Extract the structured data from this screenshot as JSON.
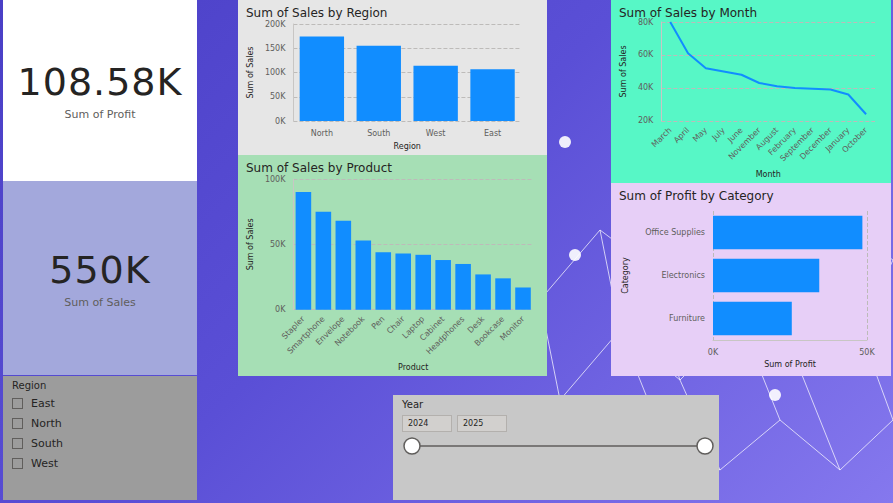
{
  "cards": [
    {
      "value": "108.58K",
      "label": "Sum of Profit"
    },
    {
      "value": "550K",
      "label": "Sum of Sales"
    }
  ],
  "region_slicer": {
    "title": "Region",
    "items": [
      "East",
      "North",
      "South",
      "West"
    ]
  },
  "year_slicer": {
    "title": "Year",
    "start": "2024",
    "end": "2025"
  },
  "chart_data": [
    {
      "type": "bar",
      "title": "Sum of Sales by Region",
      "x_label": "Region",
      "y_label": "Sum of Sales",
      "categories": [
        "North",
        "South",
        "West",
        "East"
      ],
      "values": [
        174000,
        155000,
        114000,
        107000
      ],
      "color": "#118dff",
      "ylim": [
        0,
        200000
      ],
      "yticks": [
        {
          "value": 0,
          "label": "0K"
        },
        {
          "value": 50000,
          "label": "50K"
        },
        {
          "value": 100000,
          "label": "100K"
        },
        {
          "value": 150000,
          "label": "150K"
        },
        {
          "value": 200000,
          "label": "200K"
        }
      ],
      "grid": true
    },
    {
      "type": "bar",
      "title": "Sum of Sales by Product",
      "x_label": "Product",
      "y_label": "Sum of Sales",
      "categories": [
        "Stapler",
        "Smartphone",
        "Envelope",
        "Notebook",
        "Pen",
        "Chair",
        "Laptop",
        "Cabinet",
        "Headphones",
        "Desk",
        "Bookcase",
        "Monitor"
      ],
      "values": [
        90000,
        75000,
        68000,
        53000,
        44000,
        43000,
        42000,
        38000,
        35000,
        27000,
        24000,
        17000
      ],
      "color": "#118dff",
      "ylim": [
        0,
        100000
      ],
      "yticks": [
        {
          "value": 0,
          "label": "0K"
        },
        {
          "value": 50000,
          "label": "50K"
        },
        {
          "value": 100000,
          "label": "100K"
        }
      ],
      "grid": true
    },
    {
      "type": "line",
      "title": "Sum of Sales by Month",
      "x_label": "Month",
      "y_label": "Sum of Sales",
      "categories": [
        "March",
        "April",
        "May",
        "July",
        "June",
        "November",
        "August",
        "February",
        "September",
        "December",
        "January",
        "October"
      ],
      "values": [
        80000,
        61000,
        52000,
        50000,
        48000,
        43000,
        41000,
        40000,
        39500,
        39000,
        36000,
        24000
      ],
      "color": "#118dff",
      "ylim": [
        20000,
        80000
      ],
      "yticks": [
        {
          "value": 20000,
          "label": "20K"
        },
        {
          "value": 40000,
          "label": "40K"
        },
        {
          "value": 60000,
          "label": "60K"
        },
        {
          "value": 80000,
          "label": "80K"
        }
      ],
      "grid": true
    },
    {
      "type": "bar",
      "orientation": "horizontal",
      "title": "Sum of Profit by Category",
      "x_label": "Sum of Profit",
      "y_label": "Category",
      "categories": [
        "Office Supplies",
        "Electronics",
        "Furniture"
      ],
      "values": [
        48500,
        34500,
        25580
      ],
      "color": "#118dff",
      "xlim": [
        0,
        50000
      ],
      "xticks": [
        {
          "value": 0,
          "label": "0K"
        },
        {
          "value": 50000,
          "label": "50K"
        }
      ],
      "grid": true
    }
  ]
}
